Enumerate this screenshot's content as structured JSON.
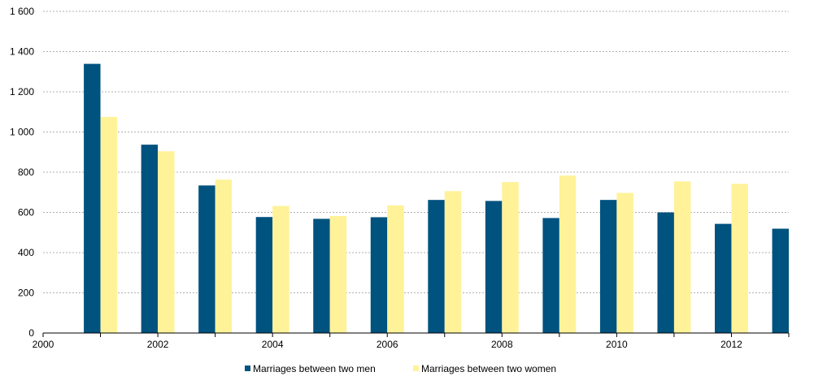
{
  "chart_data": {
    "type": "bar",
    "x_ticks": [
      "2000",
      "2002",
      "2004",
      "2006",
      "2008",
      "2010",
      "2012"
    ],
    "y_ticks": [
      "0",
      "200",
      "400",
      "600",
      "800",
      "1 000",
      "1 200",
      "1 400",
      "1 600"
    ],
    "x_range": [
      2000,
      2013
    ],
    "ylim": [
      0,
      1600
    ],
    "grid": true,
    "legend_position": "bottom-center",
    "series": [
      {
        "name": "Marriages between two men",
        "color": "#00527f",
        "points": [
          {
            "x": 2001,
            "y": 1339
          },
          {
            "x": 2002,
            "y": 937
          },
          {
            "x": 2003,
            "y": 734
          },
          {
            "x": 2004,
            "y": 577
          },
          {
            "x": 2005,
            "y": 568
          },
          {
            "x": 2006,
            "y": 576
          },
          {
            "x": 2007,
            "y": 662
          },
          {
            "x": 2008,
            "y": 657
          },
          {
            "x": 2009,
            "y": 572
          },
          {
            "x": 2010,
            "y": 662
          },
          {
            "x": 2011,
            "y": 600
          },
          {
            "x": 2012,
            "y": 543
          },
          {
            "x": 2013,
            "y": 519
          }
        ]
      },
      {
        "name": "Marriages between two women",
        "color": "#fff298",
        "points": [
          {
            "x": 2001,
            "y": 1075
          },
          {
            "x": 2002,
            "y": 904
          },
          {
            "x": 2003,
            "y": 763
          },
          {
            "x": 2004,
            "y": 632
          },
          {
            "x": 2005,
            "y": 582
          },
          {
            "x": 2006,
            "y": 635
          },
          {
            "x": 2007,
            "y": 706
          },
          {
            "x": 2008,
            "y": 751
          },
          {
            "x": 2009,
            "y": 783
          },
          {
            "x": 2010,
            "y": 697
          },
          {
            "x": 2011,
            "y": 754
          },
          {
            "x": 2012,
            "y": 742
          }
        ]
      }
    ]
  }
}
